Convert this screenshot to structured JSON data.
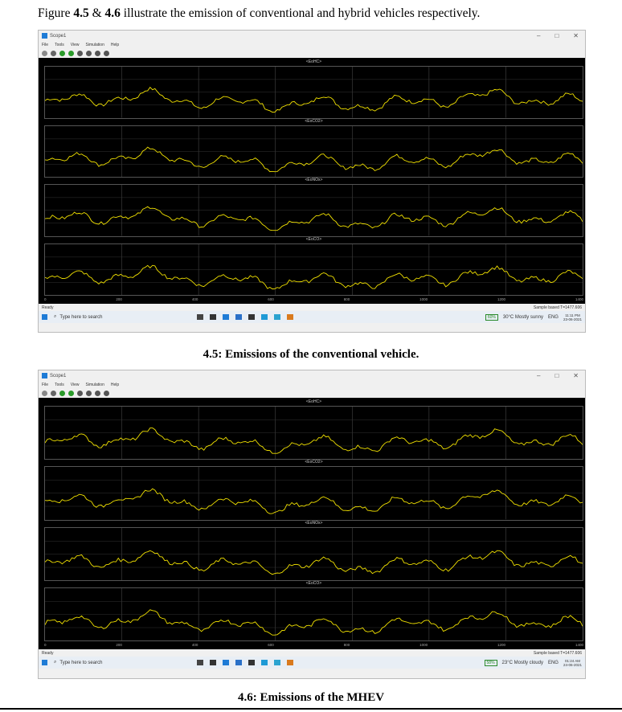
{
  "intro": {
    "pre": "Figure ",
    "fig1": "4.5",
    "amp": " & ",
    "fig2": "4.6",
    "post": " illustrate the emission of conventional and hybrid vehicles respectively."
  },
  "screens": [
    {
      "window_title": "Scope1",
      "menu": [
        "File",
        "Tools",
        "View",
        "Simulation",
        "Help"
      ],
      "panels": [
        "<EoHC>",
        "<EoCO2>",
        "<EoNOx>",
        "<EoCO>"
      ],
      "x_ticks": [
        "0",
        "200",
        "400",
        "600",
        "800",
        "1000",
        "1200",
        "1400"
      ],
      "status_left": "Ready",
      "status_right": "Sample based  T=1477.606",
      "search_placeholder": "Type here to search",
      "battery": "60%",
      "weather": "30°C  Mostly sunny",
      "lang": "ENG",
      "time": "11:11 PM",
      "date": "23-06-2021",
      "color": "#f0e000"
    },
    {
      "window_title": "Scope1",
      "menu": [
        "File",
        "Tools",
        "View",
        "Simulation",
        "Help"
      ],
      "panels": [
        "<EoHC>",
        "<EoCO2>",
        "<EoNOx>",
        "<EoCO>"
      ],
      "x_ticks": [
        "0",
        "200",
        "400",
        "600",
        "800",
        "1000",
        "1200",
        "1400"
      ],
      "status_left": "Ready",
      "status_right": "Sample based  T=1477.606",
      "search_placeholder": "Type here to search",
      "battery": "58%",
      "weather": "23°C  Mostly cloudy",
      "lang": "ENG",
      "time": "01:24 AM",
      "date": "24-06-2021",
      "color": "#f0e000"
    }
  ],
  "captions": [
    "4.5: Emissions of the conventional vehicle.",
    "4.6: Emissions of the MHEV"
  ]
}
